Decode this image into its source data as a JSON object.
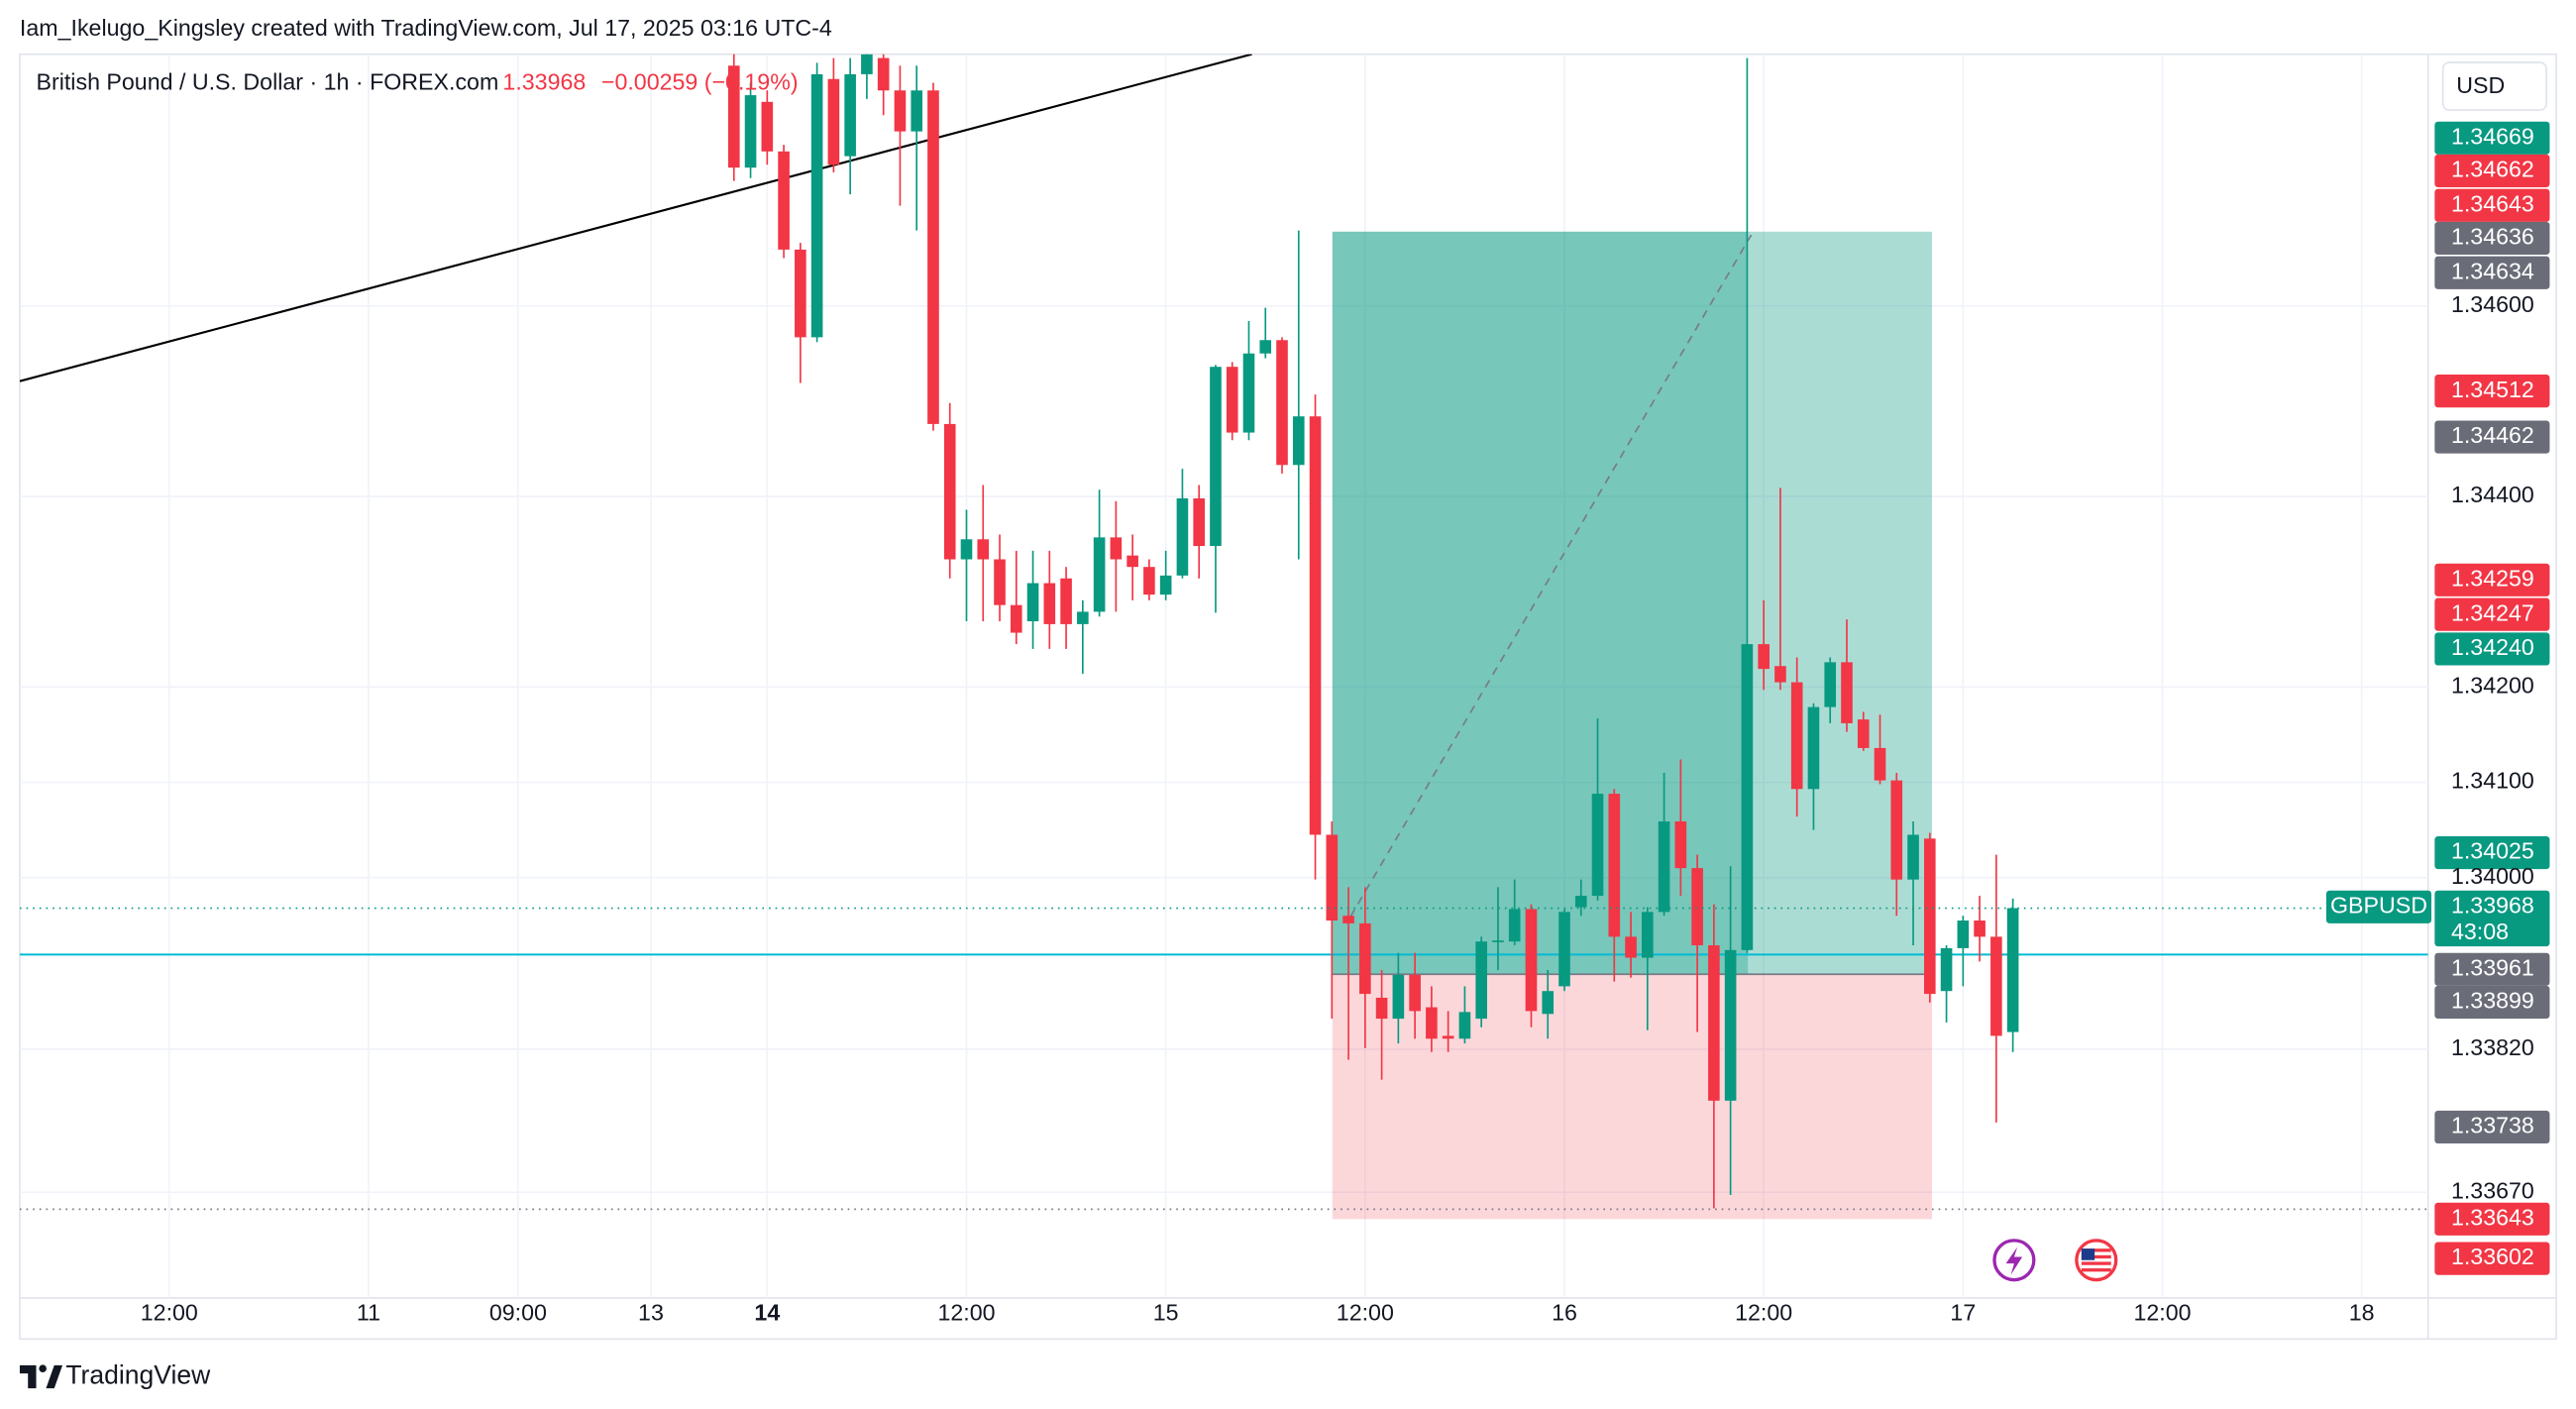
{
  "header": "Iam_Ikelugo_Kingsley created with TradingView.com, Jul 17, 2025 03:16 UTC-4",
  "footer": "TradingView",
  "chart_data": {
    "type": "candlestick",
    "title": "British Pound / U.S. Dollar · 1h · FOREX.com",
    "last_label": "1.33968",
    "change_label": "−0.00259 (−0.19%)",
    "currency": "USD",
    "symbol": "GBPUSD",
    "countdown": "43:08",
    "up_color": "#089981",
    "down_color": "#f23645",
    "grid": true,
    "x": [
      -2,
      -1,
      0,
      1,
      2,
      3,
      4,
      5,
      6,
      7,
      8,
      9,
      10,
      11,
      12,
      13,
      14,
      15,
      16,
      17,
      18,
      19,
      20,
      21,
      22,
      23,
      24,
      25,
      26,
      27,
      28,
      29,
      30,
      31,
      32,
      33,
      34,
      35,
      36,
      37,
      38,
      39,
      40,
      41,
      42,
      43,
      44,
      45,
      46,
      47,
      48,
      49,
      50,
      51,
      52,
      53,
      54,
      55,
      56,
      57,
      58,
      59,
      60,
      61,
      62,
      63,
      64,
      65,
      66,
      67,
      68,
      69,
      70,
      71,
      72,
      73,
      74,
      75
    ],
    "open": [
      1.34852,
      1.34745,
      1.34814,
      1.34762,
      1.34659,
      1.34567,
      1.34838,
      1.34757,
      1.34843,
      1.3486,
      1.34826,
      1.34783,
      1.34826,
      1.34476,
      1.34334,
      1.34355,
      1.34334,
      1.34286,
      1.34269,
      1.34309,
      1.34314,
      1.34266,
      1.34279,
      1.34357,
      1.34338,
      1.34326,
      1.34297,
      1.34317,
      1.34398,
      1.34348,
      1.34536,
      1.34467,
      1.3455,
      1.34564,
      1.34433,
      1.34484,
      1.34045,
      1.3396,
      1.33952,
      1.33874,
      1.33852,
      1.33898,
      1.33864,
      1.33834,
      1.33831,
      1.33852,
      1.33933,
      1.33933,
      1.33967,
      1.33857,
      1.33886,
      1.33969,
      1.33981,
      1.34088,
      1.33938,
      1.33916,
      1.33964,
      1.34059,
      1.3401,
      1.33929,
      1.33766,
      1.33924,
      1.34245,
      1.34222,
      1.34205,
      1.34093,
      1.34179,
      1.34226,
      1.34166,
      1.34136,
      1.34102,
      1.33998,
      1.34041,
      1.33881,
      1.33926,
      1.33955,
      1.33938,
      1.33838
    ],
    "high": [
      1.34869,
      1.34834,
      1.34826,
      1.34769,
      1.34666,
      1.34855,
      1.3486,
      1.3486,
      1.34869,
      1.34869,
      1.34852,
      1.34852,
      1.34834,
      1.34498,
      1.34386,
      1.34412,
      1.3436,
      1.34343,
      1.34343,
      1.34343,
      1.34326,
      1.34291,
      1.34407,
      1.34395,
      1.3436,
      1.34334,
      1.34343,
      1.34429,
      1.34412,
      1.34538,
      1.34541,
      1.34584,
      1.34598,
      1.34567,
      1.34679,
      1.34507,
      1.34059,
      1.3399,
      1.3399,
      1.33903,
      1.33921,
      1.33921,
      1.33886,
      1.3386,
      1.33886,
      1.33938,
      1.3399,
      1.33998,
      1.33972,
      1.33903,
      1.33967,
      1.33998,
      1.34167,
      1.34093,
      1.33964,
      1.33969,
      1.3411,
      1.34124,
      1.34024,
      1.33972,
      1.34012,
      1.3486,
      1.34291,
      1.34409,
      1.34231,
      1.34183,
      1.34231,
      1.34271,
      1.34174,
      1.34171,
      1.3411,
      1.34059,
      1.34047,
      1.33929,
      1.3396,
      1.33981,
      1.34024,
      1.33978
    ],
    "low": [
      1.34731,
      1.34734,
      1.34748,
      1.3465,
      1.34519,
      1.34562,
      1.3474,
      1.34717,
      1.34817,
      1.348,
      1.34705,
      1.34679,
      1.34469,
      1.34314,
      1.34269,
      1.34269,
      1.34269,
      1.34245,
      1.3424,
      1.3424,
      1.3424,
      1.34214,
      1.34274,
      1.34279,
      1.34291,
      1.34291,
      1.34291,
      1.34314,
      1.34314,
      1.34278,
      1.34459,
      1.34459,
      1.34545,
      1.34424,
      1.34334,
      1.33998,
      1.33852,
      1.33809,
      1.33821,
      1.33788,
      1.33826,
      1.33831,
      1.33817,
      1.33817,
      1.33826,
      1.33843,
      1.33903,
      1.33929,
      1.33843,
      1.33831,
      1.33881,
      1.3396,
      1.33976,
      1.33891,
      1.33895,
      1.3384,
      1.3396,
      1.33981,
      1.33838,
      1.33653,
      1.33667,
      1.33921,
      1.34197,
      1.34197,
      1.34064,
      1.3405,
      1.34162,
      1.34153,
      1.34133,
      1.34098,
      1.3396,
      1.33929,
      1.33869,
      1.33848,
      1.33886,
      1.33912,
      1.33743,
      1.33817
    ],
    "close": [
      1.34745,
      1.34821,
      1.34762,
      1.34659,
      1.34567,
      1.34843,
      1.34748,
      1.34843,
      1.34864,
      1.34826,
      1.34783,
      1.34826,
      1.34476,
      1.34334,
      1.34355,
      1.34334,
      1.34286,
      1.34257,
      1.34309,
      1.34266,
      1.34266,
      1.34279,
      1.34357,
      1.34334,
      1.34326,
      1.34297,
      1.34317,
      1.34398,
      1.34348,
      1.34536,
      1.34467,
      1.3455,
      1.34564,
      1.34433,
      1.34484,
      1.34045,
      1.33955,
      1.33952,
      1.33878,
      1.33852,
      1.33898,
      1.3386,
      1.33831,
      1.33831,
      1.33859,
      1.33933,
      1.33934,
      1.33967,
      1.3386,
      1.33881,
      1.33964,
      1.33981,
      1.34088,
      1.33938,
      1.33916,
      1.33964,
      1.34059,
      1.3401,
      1.33929,
      1.33766,
      1.33924,
      1.34245,
      1.34219,
      1.34205,
      1.34093,
      1.34179,
      1.34226,
      1.34162,
      1.34136,
      1.34102,
      1.33998,
      1.34045,
      1.33878,
      1.33926,
      1.33955,
      1.33938,
      1.33834,
      1.33968
    ],
    "xlim": [
      -45,
      100
    ],
    "xticks": [
      {
        "value": -36,
        "label": "12:00"
      },
      {
        "value": -24,
        "label": "11"
      },
      {
        "value": -15,
        "label": "09:00"
      },
      {
        "value": -7,
        "label": "13"
      },
      {
        "value": 0,
        "label": "14"
      },
      {
        "value": 12,
        "label": "12:00"
      },
      {
        "value": 24,
        "label": "15"
      },
      {
        "value": 36,
        "label": "12:00"
      },
      {
        "value": 48,
        "label": "16"
      },
      {
        "value": 60,
        "label": "12:00"
      },
      {
        "value": 72,
        "label": "17"
      },
      {
        "value": 84,
        "label": "12:00"
      },
      {
        "value": 96,
        "label": "18"
      }
    ],
    "ylim": [
      1.33559,
      1.34864
    ],
    "yticks": [
      {
        "value": 1.346,
        "label": "1.34600"
      },
      {
        "value": 1.344,
        "label": "1.34400"
      },
      {
        "value": 1.342,
        "label": "1.34200"
      },
      {
        "value": 1.341,
        "label": "1.34100"
      },
      {
        "value": 1.34,
        "label": "1.34000"
      },
      {
        "value": 1.3382,
        "label": "1.33820"
      },
      {
        "value": 1.3367,
        "label": "1.33670"
      }
    ],
    "price_labels": [
      {
        "label": "1.34669",
        "color": "#089981"
      },
      {
        "label": "1.34662",
        "color": "#f23645"
      },
      {
        "label": "1.34643",
        "color": "#f23645"
      },
      {
        "label": "1.34636",
        "color": "#6a6d78"
      },
      {
        "label": "1.34634",
        "color": "#6a6d78"
      },
      {
        "label": "1.34512",
        "color": "#f23645"
      },
      {
        "label": "1.34462",
        "color": "#6a6d78"
      },
      {
        "label": "1.34259",
        "color": "#f23645"
      },
      {
        "label": "1.34247",
        "color": "#f23645"
      },
      {
        "label": "1.34240",
        "color": "#089981"
      },
      {
        "label": "1.34025",
        "color": "#089981"
      },
      {
        "label": "1.33968",
        "color": "#089981"
      },
      {
        "label": "1.33961",
        "color": "#6a6d78"
      },
      {
        "label": "1.33899",
        "color": "#6a6d78"
      },
      {
        "label": "1.33738",
        "color": "#6a6d78"
      },
      {
        "label": "1.33643",
        "color": "#f23645"
      },
      {
        "label": "1.33602",
        "color": "#f23645"
      }
    ]
  }
}
